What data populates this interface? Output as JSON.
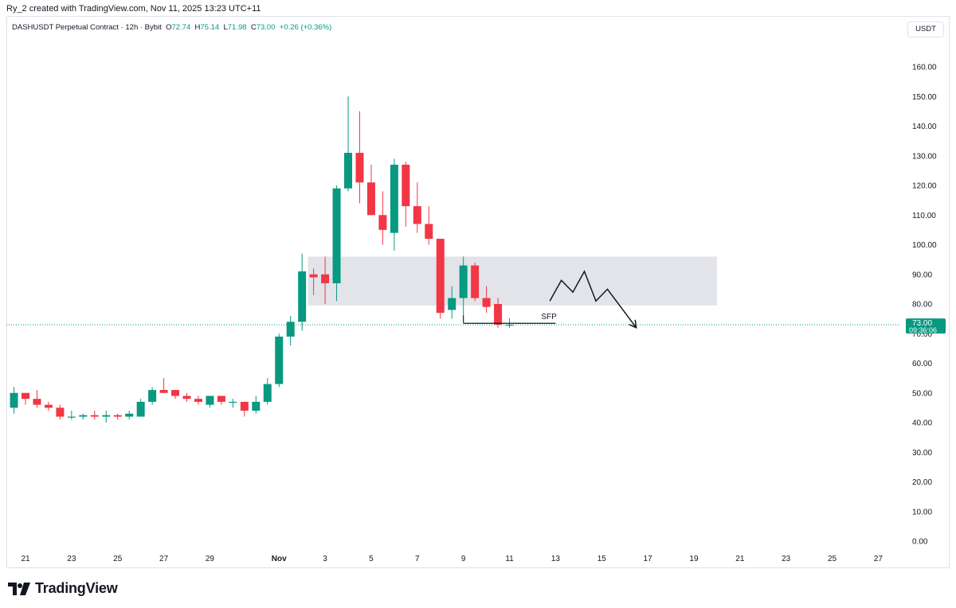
{
  "credit": "Ry_2 created with TradingView.com, Nov 11, 2025 13:23 UTC+11",
  "brand": "TradingView",
  "colors": {
    "up": "#089981",
    "down": "#f23645",
    "zone": "#d1d4dc",
    "price_line": "#089981"
  },
  "chart_data": {
    "type": "candlestick",
    "title": "DASHUSDT Perpetual Contract · 12h · Bybit",
    "ohlc_summary": {
      "O": "72.74",
      "H": "75.14",
      "L": "71.98",
      "C": "73.00",
      "change": "+0.26 (+0.36%)"
    },
    "unit": "USDT",
    "ylim": [
      0,
      160
    ],
    "y_ticks": [
      "160.00",
      "150.00",
      "140.00",
      "130.00",
      "120.00",
      "110.00",
      "100.00",
      "90.00",
      "80.00",
      "70.00",
      "60.00",
      "50.00",
      "40.00",
      "30.00",
      "20.00",
      "10.00",
      "0.00"
    ],
    "x_ticks": [
      "21",
      "23",
      "25",
      "27",
      "29",
      "Nov",
      "3",
      "5",
      "7",
      "9",
      "11",
      "13",
      "15",
      "17",
      "19",
      "21",
      "23",
      "25",
      "27"
    ],
    "candles": [
      {
        "t": "Oct 20 12:00",
        "o": 45,
        "h": 52,
        "l": 43,
        "c": 50
      },
      {
        "t": "Oct 21 00:00",
        "o": 50,
        "h": 50,
        "l": 46,
        "c": 48
      },
      {
        "t": "Oct 21 12:00",
        "o": 48,
        "h": 51,
        "l": 45,
        "c": 46
      },
      {
        "t": "Oct 22 00:00",
        "o": 46,
        "h": 47,
        "l": 44,
        "c": 45
      },
      {
        "t": "Oct 22 12:00",
        "o": 45,
        "h": 46,
        "l": 41,
        "c": 42
      },
      {
        "t": "Oct 23 00:00",
        "o": 42,
        "h": 44,
        "l": 41,
        "c": 42
      },
      {
        "t": "Oct 23 12:00",
        "o": 42,
        "h": 43,
        "l": 41,
        "c": 42.5
      },
      {
        "t": "Oct 24 00:00",
        "o": 42.5,
        "h": 44,
        "l": 41,
        "c": 42
      },
      {
        "t": "Oct 24 12:00",
        "o": 42,
        "h": 44,
        "l": 40,
        "c": 42.5
      },
      {
        "t": "Oct 25 00:00",
        "o": 42.5,
        "h": 43,
        "l": 41,
        "c": 42
      },
      {
        "t": "Oct 25 12:00",
        "o": 42,
        "h": 44,
        "l": 41,
        "c": 43
      },
      {
        "t": "Oct 26 00:00",
        "o": 42,
        "h": 48,
        "l": 42,
        "c": 47
      },
      {
        "t": "Oct 26 12:00",
        "o": 47,
        "h": 52,
        "l": 46,
        "c": 51
      },
      {
        "t": "Oct 27 00:00",
        "o": 51,
        "h": 55,
        "l": 50,
        "c": 50
      },
      {
        "t": "Oct 27 12:00",
        "o": 51,
        "h": 51,
        "l": 48,
        "c": 49
      },
      {
        "t": "Oct 28 00:00",
        "o": 49,
        "h": 50,
        "l": 47,
        "c": 48
      },
      {
        "t": "Oct 28 12:00",
        "o": 48,
        "h": 49,
        "l": 46,
        "c": 47
      },
      {
        "t": "Oct 29 00:00",
        "o": 46,
        "h": 49,
        "l": 45,
        "c": 49
      },
      {
        "t": "Oct 29 12:00",
        "o": 49,
        "h": 49,
        "l": 46,
        "c": 47
      },
      {
        "t": "Oct 30 00:00",
        "o": 47,
        "h": 48,
        "l": 45,
        "c": 47
      },
      {
        "t": "Oct 30 12:00",
        "o": 47,
        "h": 47,
        "l": 42,
        "c": 44
      },
      {
        "t": "Oct 31 00:00",
        "o": 44,
        "h": 49,
        "l": 43,
        "c": 47
      },
      {
        "t": "Oct 31 12:00",
        "o": 47,
        "h": 55,
        "l": 46,
        "c": 53
      },
      {
        "t": "Nov 1 00:00",
        "o": 53,
        "h": 70,
        "l": 52,
        "c": 69
      },
      {
        "t": "Nov 1 12:00",
        "o": 69,
        "h": 76,
        "l": 66,
        "c": 74
      },
      {
        "t": "Nov 2 00:00",
        "o": 74,
        "h": 97,
        "l": 71,
        "c": 91
      },
      {
        "t": "Nov 2 12:00",
        "o": 90,
        "h": 92,
        "l": 83,
        "c": 89
      },
      {
        "t": "Nov 3 00:00",
        "o": 90,
        "h": 96,
        "l": 80,
        "c": 87
      },
      {
        "t": "Nov 3 12:00",
        "o": 87,
        "h": 120,
        "l": 81,
        "c": 119
      },
      {
        "t": "Nov 4 00:00",
        "o": 119,
        "h": 150,
        "l": 118,
        "c": 131
      },
      {
        "t": "Nov 4 12:00",
        "o": 131,
        "h": 145,
        "l": 114,
        "c": 121
      },
      {
        "t": "Nov 5 00:00",
        "o": 121,
        "h": 127,
        "l": 110,
        "c": 110
      },
      {
        "t": "Nov 5 12:00",
        "o": 110,
        "h": 118,
        "l": 100,
        "c": 105
      },
      {
        "t": "Nov 6 00:00",
        "o": 104,
        "h": 129,
        "l": 98,
        "c": 127
      },
      {
        "t": "Nov 6 12:00",
        "o": 127,
        "h": 128,
        "l": 106,
        "c": 113
      },
      {
        "t": "Nov 7 00:00",
        "o": 113,
        "h": 121,
        "l": 104,
        "c": 107
      },
      {
        "t": "Nov 7 12:00",
        "o": 107,
        "h": 113,
        "l": 100,
        "c": 102
      },
      {
        "t": "Nov 8 00:00",
        "o": 102,
        "h": 102,
        "l": 75,
        "c": 77
      },
      {
        "t": "Nov 8 12:00",
        "o": 78,
        "h": 86,
        "l": 75,
        "c": 82
      },
      {
        "t": "Nov 9 00:00",
        "o": 82,
        "h": 96,
        "l": 74,
        "c": 93
      },
      {
        "t": "Nov 9 12:00",
        "o": 93,
        "h": 94,
        "l": 81,
        "c": 82
      },
      {
        "t": "Nov 10 00:00",
        "o": 82,
        "h": 86,
        "l": 77,
        "c": 79
      },
      {
        "t": "Nov 10 12:00",
        "o": 80,
        "h": 82,
        "l": 72,
        "c": 73
      },
      {
        "t": "Nov 11 00:00",
        "o": 72.74,
        "h": 75.14,
        "l": 71.98,
        "c": 73
      }
    ],
    "annotations": {
      "zone": {
        "top": 96,
        "bottom": 79.5,
        "from": "Nov 2 12:00",
        "to": "Nov 20 00:00"
      },
      "sfp": {
        "label": "SFP",
        "price": 73.5,
        "from": "Nov 9 00:00",
        "to": "Nov 13 00:00"
      },
      "projection": [
        {
          "t": "Nov 12 18:00",
          "p": 81
        },
        {
          "t": "Nov 13 06:00",
          "p": 88
        },
        {
          "t": "Nov 13 18:00",
          "p": 84
        },
        {
          "t": "Nov 14 06:00",
          "p": 91
        },
        {
          "t": "Nov 14 18:00",
          "p": 81
        },
        {
          "t": "Nov 15 06:00",
          "p": 85
        },
        {
          "t": "Nov 16 12:00",
          "p": 72
        }
      ]
    },
    "last_price": {
      "value": "73.00",
      "countdown": "09:36:06"
    }
  }
}
